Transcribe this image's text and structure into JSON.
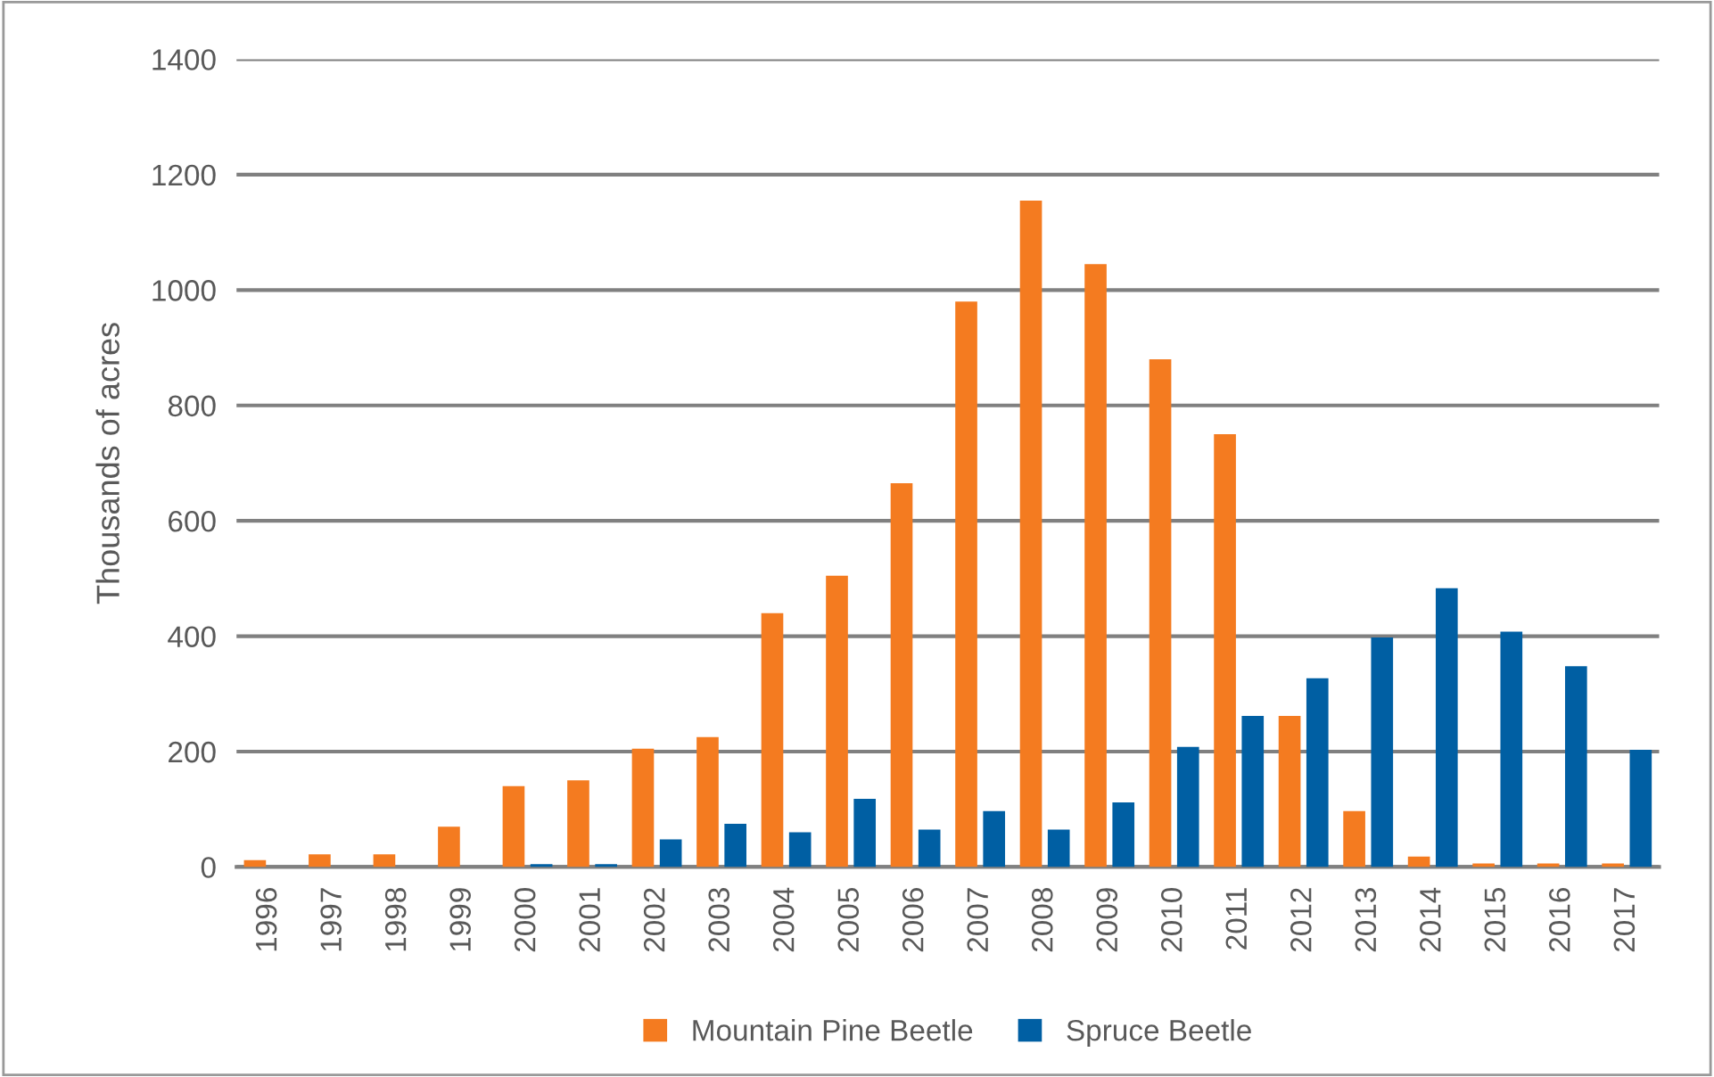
{
  "chart_data": {
    "type": "bar",
    "ylabel": "Thousands of acres",
    "categories": [
      "1996",
      "1997",
      "1998",
      "1999",
      "2000",
      "2001",
      "2002",
      "2003",
      "2004",
      "2005",
      "2006",
      "2007",
      "2008",
      "2009",
      "2010",
      "2011",
      "2012",
      "2013",
      "2014",
      "2015",
      "2016",
      "2017"
    ],
    "series": [
      {
        "name": "Mountain Pine Beetle",
        "color": "#f47b20",
        "values": [
          12,
          22,
          22,
          70,
          140,
          150,
          205,
          225,
          440,
          505,
          665,
          980,
          1155,
          1045,
          880,
          750,
          262,
          97,
          18,
          6,
          6,
          6
        ]
      },
      {
        "name": "Spruce Beetle",
        "color": "#005fa3",
        "values": [
          null,
          null,
          null,
          null,
          5,
          5,
          48,
          75,
          60,
          118,
          65,
          97,
          65,
          112,
          208,
          262,
          327,
          398,
          483,
          408,
          348,
          203
        ]
      }
    ],
    "ylim": [
      0,
      1400
    ],
    "yticks": [
      0,
      200,
      400,
      600,
      800,
      1000,
      1200,
      1400
    ],
    "grid": "y",
    "legend": "bottom"
  }
}
